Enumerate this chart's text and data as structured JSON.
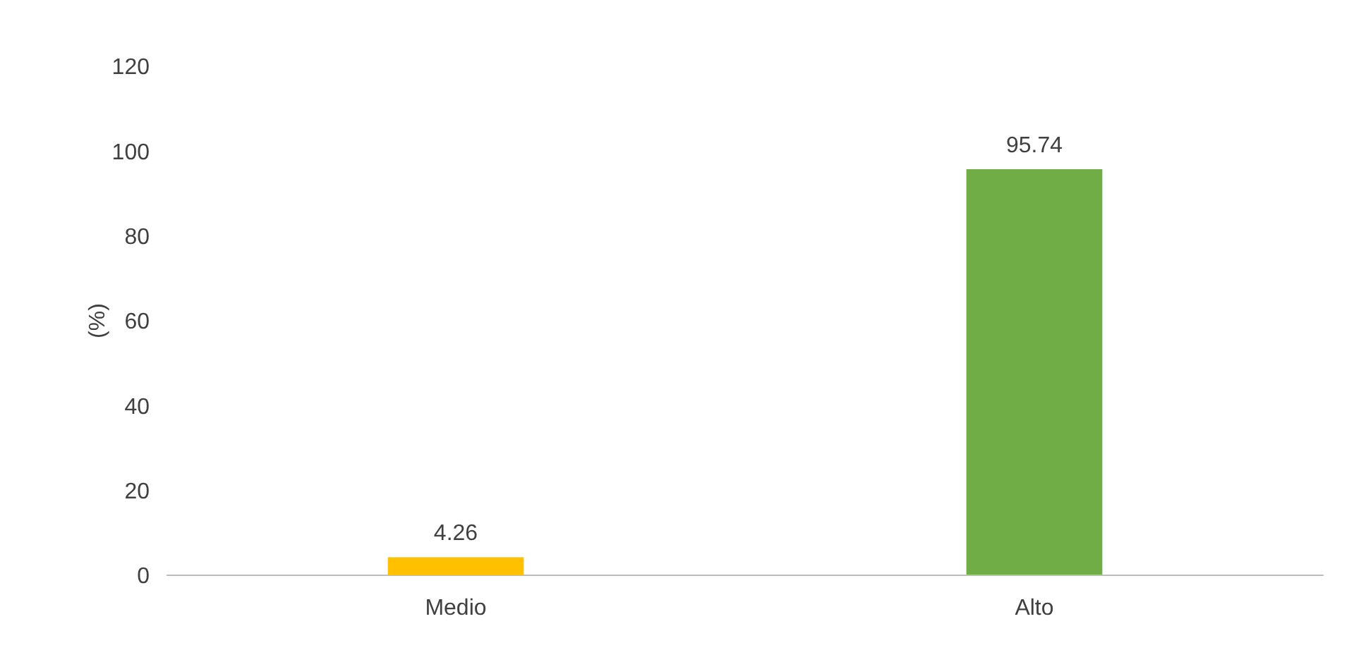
{
  "chart_data": {
    "type": "bar",
    "ylabel": "(%)",
    "categories": [
      "Medio",
      "Alto"
    ],
    "values": [
      4.26,
      95.74
    ],
    "colors": [
      "#ffc000",
      "#70ad47"
    ],
    "ylim": [
      0,
      120
    ],
    "yticks": [
      0,
      20,
      40,
      60,
      80,
      100,
      120
    ],
    "data_labels": true,
    "grid": false
  }
}
